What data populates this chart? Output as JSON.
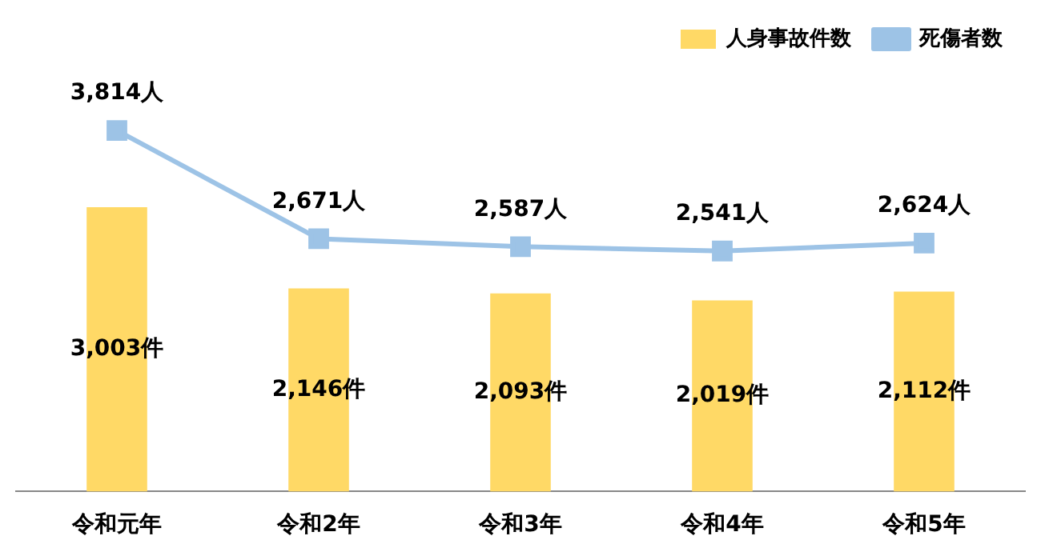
{
  "chart_data": {
    "type": "bar",
    "categories": [
      "令和元年",
      "令和2年",
      "令和3年",
      "令和4年",
      "令和5年"
    ],
    "series": [
      {
        "name": "人身事故件数",
        "color": "#ffd966",
        "values": [
          3003,
          2146,
          2093,
          2019,
          2112
        ],
        "value_labels": [
          "3,003件",
          "2,146件",
          "2,093件",
          "2,019件",
          "2,112件"
        ]
      },
      {
        "name": "死傷者数",
        "type": "line",
        "color": "#9dc3e6",
        "values": [
          3814,
          2671,
          2587,
          2541,
          2624
        ],
        "value_labels": [
          "3,814人",
          "2,671人",
          "2,587人",
          "2,541人",
          "2,624人"
        ]
      }
    ],
    "legend": "top right",
    "marker": "square",
    "grid": false
  }
}
